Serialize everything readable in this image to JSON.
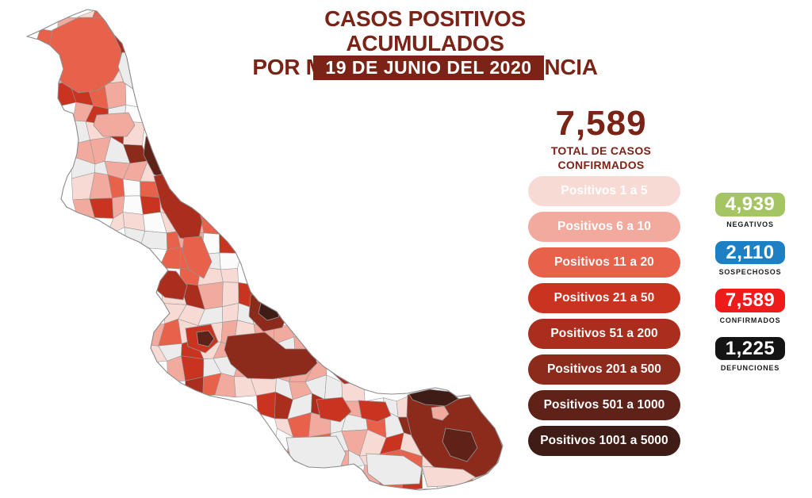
{
  "header": {
    "title_line1": "CASOS POSITIVOS ACUMULADOS",
    "title_line2": "POR MUNICIPIO DE RESIDENCIA",
    "date_banner": "19 DE JUNIO DEL 2020",
    "title_color": "#7a2316",
    "banner_bg": "#7a2316"
  },
  "total": {
    "value": "7,589",
    "label_line1": "TOTAL DE CASOS",
    "label_line2": "CONFIRMADOS",
    "color": "#7a2316"
  },
  "legend": {
    "items": [
      {
        "label": "Positivos 1 a 5",
        "color": "#f8dad4"
      },
      {
        "label": "Positivos 6 a 10",
        "color": "#f2aa9e"
      },
      {
        "label": "Positivos 11 a 20",
        "color": "#e8614b"
      },
      {
        "label": "Positivos 21 a 50",
        "color": "#c93421"
      },
      {
        "label": "Positivos 51 a 200",
        "color": "#aa2d1d"
      },
      {
        "label": "Positivos 201 a 500",
        "color": "#8c2a1b"
      },
      {
        "label": "Positivos 501 a 1000",
        "color": "#5e2219"
      },
      {
        "label": "Positivos 1001 a 5000",
        "color": "#3f1d16"
      }
    ]
  },
  "stats": [
    {
      "value": "4,939",
      "label": "NEGATIVOS",
      "color": "#a5c464"
    },
    {
      "value": "2,110",
      "label": "SOSPECHOSOS",
      "color": "#1e80c4"
    },
    {
      "value": "7,589",
      "label": "CONFIRMADOS",
      "color": "#ee1b1b"
    },
    {
      "value": "1,225",
      "label": "DEFUNCIONES",
      "color": "#141414"
    }
  ],
  "map": {
    "name": "Veracruz choropleth por municipio",
    "no_data_color": "#ececec",
    "empty_color": "#fbfbfb",
    "border_color": "#949494"
  }
}
